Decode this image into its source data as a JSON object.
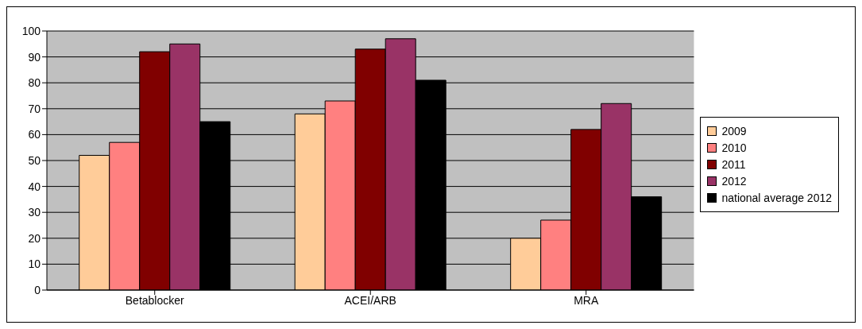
{
  "chart_data": {
    "type": "bar",
    "categories": [
      "Betablocker",
      "ACEI/ARB",
      "MRA"
    ],
    "series": [
      {
        "name": "2009",
        "color": "#ffcc99",
        "values": [
          52,
          68,
          20
        ]
      },
      {
        "name": "2010",
        "color": "#ff8080",
        "values": [
          57,
          73,
          27
        ]
      },
      {
        "name": "2011",
        "color": "#800000",
        "values": [
          92,
          93,
          62
        ]
      },
      {
        "name": "2012",
        "color": "#993366",
        "values": [
          95,
          97,
          72
        ]
      },
      {
        "name": "national average 2012",
        "color": "#000000",
        "values": [
          65,
          81,
          36
        ]
      }
    ],
    "ylim": [
      0,
      100
    ],
    "yticks": [
      0,
      10,
      20,
      30,
      40,
      50,
      60,
      70,
      80,
      90,
      100
    ],
    "grid": "y",
    "legend": "right"
  }
}
